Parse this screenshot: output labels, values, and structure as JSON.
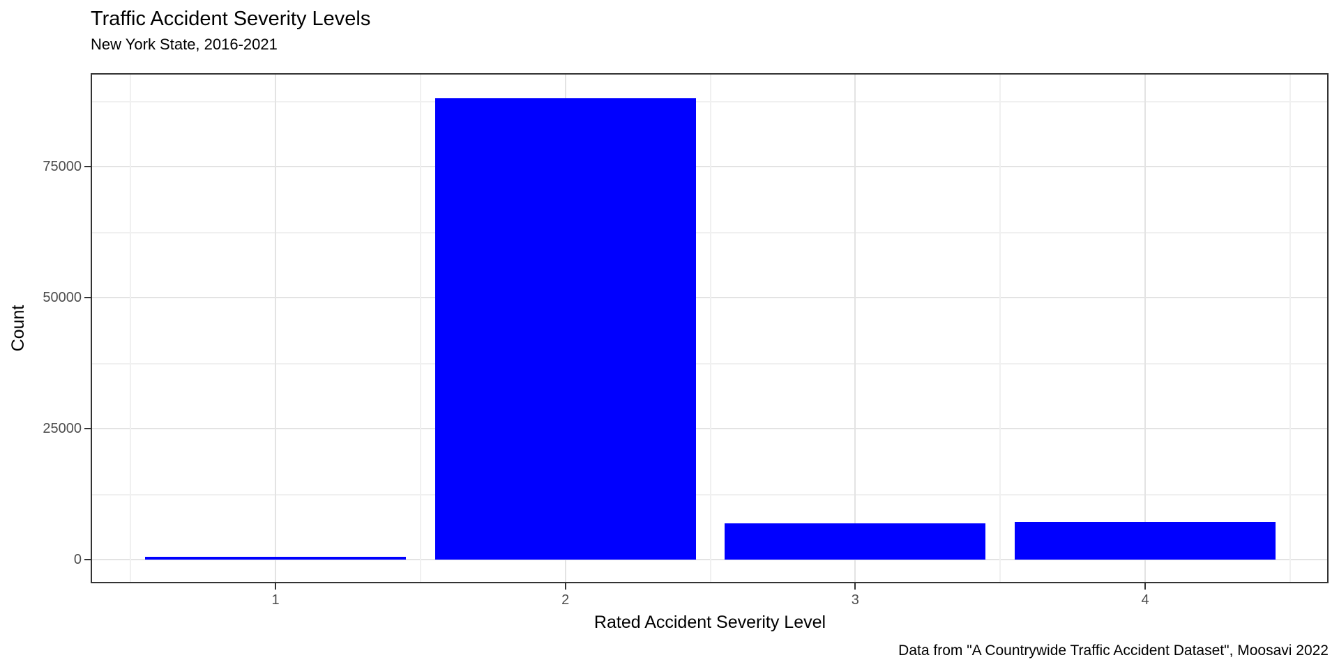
{
  "figure": {
    "title": "Traffic Accident Severity Levels",
    "subtitle": "New York State, 2016-2021",
    "caption": "Data from \"A Countrywide Traffic Accident Dataset\", Moosavi 2022"
  },
  "chart_data": {
    "type": "bar",
    "title": "Traffic Accident Severity Levels",
    "subtitle": "New York State, 2016-2021",
    "xlabel": "Rated Accident Severity Level",
    "ylabel": "Count",
    "caption": "Data from \"A Countrywide Traffic Accident Dataset\", Moosavi 2022",
    "categories": [
      "1",
      "2",
      "3",
      "4"
    ],
    "values": [
      500,
      88000,
      6900,
      7200
    ],
    "ylim": [
      0,
      92800
    ],
    "y_major_ticks": [
      0,
      25000,
      50000,
      75000
    ],
    "y_minor_gridlines": [
      12500,
      37500,
      62500,
      87500
    ],
    "grid": true,
    "legend": "none",
    "bar_color": "#0000ff"
  },
  "colors": {
    "bar_fill": "#0000ff",
    "grid_major": "#e3e3e3",
    "grid_minor": "#f0f0f0",
    "panel_border": "#333333",
    "tick_label": "#4d4d4d",
    "text": "#000000",
    "background": "#ffffff"
  }
}
